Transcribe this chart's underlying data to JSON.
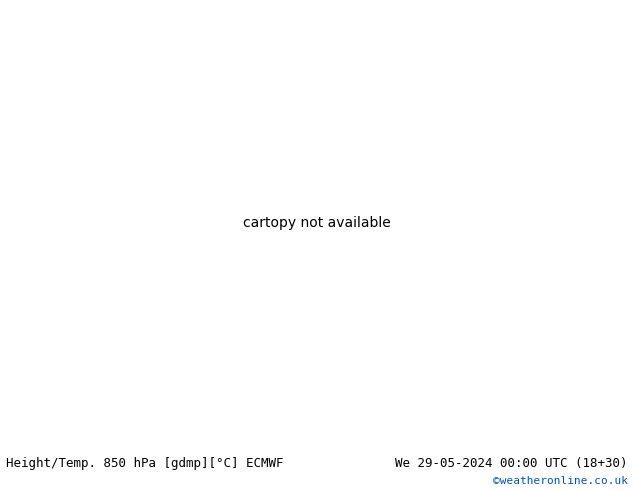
{
  "title_left": "Height/Temp. 850 hPa [gdmp][°C] ECMWF",
  "title_right": "We 29-05-2024 00:00 UTC (18+30)",
  "credit": "©weatheronline.co.uk",
  "fig_width": 6.34,
  "fig_height": 4.9,
  "dpi": 100,
  "font_size_labels": 9,
  "font_size_credit": 8,
  "credit_color": "#0055bb",
  "map_extent": [
    -30,
    50,
    25,
    75
  ],
  "land_color_warm": "#ccee99",
  "land_color_cool": "#e8e8e8",
  "sea_color": "#e0eef8",
  "border_color": "#aaaaaa",
  "coast_color": "#888888"
}
